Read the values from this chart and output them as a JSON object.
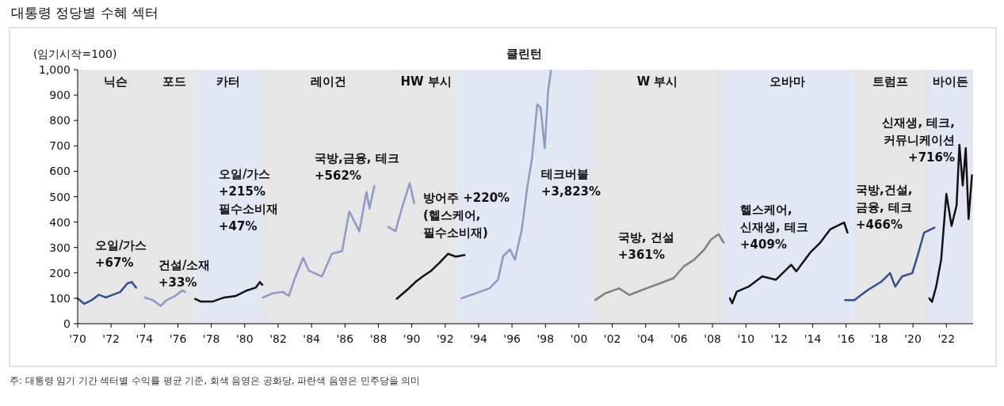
{
  "chart_data": {
    "type": "line",
    "title": "대통령 정당별 수혜 섹터",
    "ylabel": "(임기시작=100)",
    "xlim": [
      1970,
      2023.6
    ],
    "ylim": [
      0,
      1000
    ],
    "xticks": [
      {
        "value": 1970,
        "label": "'70"
      },
      {
        "value": 1972,
        "label": "'72"
      },
      {
        "value": 1974,
        "label": "'74"
      },
      {
        "value": 1976,
        "label": "'76"
      },
      {
        "value": 1978,
        "label": "'78"
      },
      {
        "value": 1980,
        "label": "'80"
      },
      {
        "value": 1982,
        "label": "'82"
      },
      {
        "value": 1984,
        "label": "'84"
      },
      {
        "value": 1986,
        "label": "'86"
      },
      {
        "value": 1988,
        "label": "'88"
      },
      {
        "value": 1990,
        "label": "'90"
      },
      {
        "value": 1992,
        "label": "'92"
      },
      {
        "value": 1994,
        "label": "'94"
      },
      {
        "value": 1996,
        "label": "'96"
      },
      {
        "value": 1998,
        "label": "'98"
      },
      {
        "value": 2000,
        "label": "'00"
      },
      {
        "value": 2002,
        "label": "'02"
      },
      {
        "value": 2004,
        "label": "'04"
      },
      {
        "value": 2006,
        "label": "'06"
      },
      {
        "value": 2008,
        "label": "'08"
      },
      {
        "value": 2010,
        "label": "'10"
      },
      {
        "value": 2012,
        "label": "'12"
      },
      {
        "value": 2014,
        "label": "'14"
      },
      {
        "value": 2016,
        "label": "'16"
      },
      {
        "value": 2018,
        "label": "'18"
      },
      {
        "value": 2020,
        "label": "'20"
      },
      {
        "value": 2022,
        "label": "'22"
      }
    ],
    "yticks": [
      0,
      100,
      200,
      300,
      400,
      500,
      600,
      700,
      800,
      900,
      {
        "value": 1000,
        "label": "1,000"
      }
    ],
    "grid": false,
    "marker": "none",
    "line_style": "solid",
    "bands": [
      {
        "axis": "x",
        "from": 1970,
        "to": 1974.6,
        "label": "닉슨",
        "color": "#e6e6e6"
      },
      {
        "axis": "x",
        "from": 1974.6,
        "to": 1977,
        "label": "포드",
        "color": "#e6e6e6"
      },
      {
        "axis": "x",
        "from": 1977,
        "to": 1981,
        "label": "카터",
        "color": "#e1e8f4"
      },
      {
        "axis": "x",
        "from": 1981,
        "to": 1989,
        "label": "레이건",
        "color": "#e6e6e6"
      },
      {
        "axis": "x",
        "from": 1989,
        "to": 1992.7,
        "label": "HW 부시",
        "color": "#e6e6e6"
      },
      {
        "axis": "x",
        "from": 1992.7,
        "to": 2000.8,
        "label": "클린턴",
        "color": "#e1e8f4"
      },
      {
        "axis": "x",
        "from": 2000.8,
        "to": 2008.6,
        "label": "W 부시",
        "color": "#e6e6e6"
      },
      {
        "axis": "x",
        "from": 2008.6,
        "to": 2016.4,
        "label": "오바마",
        "color": "#e1e8f4"
      },
      {
        "axis": "x",
        "from": 2016.4,
        "to": 2020.9,
        "label": "트럼프",
        "color": "#e6e6e6"
      },
      {
        "axis": "x",
        "from": 2020.9,
        "to": 2023.6,
        "label": "바이든",
        "color": "#e1e8f4"
      }
    ],
    "series": [
      {
        "color": "#2f4f8f",
        "x": [
          1970,
          1970.4,
          1970.83,
          1971.26,
          1971.69,
          1972.12,
          1972.55,
          1972.98,
          1973.24,
          1973.5
        ],
        "values": [
          100,
          78,
          92,
          114,
          103,
          114,
          125,
          159,
          164,
          142
        ]
      },
      {
        "color": "#8c9bc4",
        "x": [
          1974.02,
          1974.53,
          1974.97,
          1975.31,
          1975.83,
          1976.26,
          1976.43
        ],
        "values": [
          103,
          92,
          70,
          92,
          109,
          131,
          125
        ]
      },
      {
        "color": "#111111",
        "x": [
          1977.03,
          1977.38,
          1978.07,
          1978.76,
          1979.45,
          1980.14,
          1980.66,
          1980.91,
          1981.05
        ],
        "values": [
          98,
          87,
          87,
          103,
          109,
          131,
          142,
          164,
          153
        ]
      },
      {
        "color": "#8c9bc4",
        "x": [
          1981.09,
          1981.69,
          1982.29,
          1982.64,
          1982.98,
          1983.5,
          1983.84,
          1984.62,
          1985.22,
          1985.83,
          1986.26,
          1986.86,
          1987.29,
          1987.47,
          1987.76
        ],
        "values": [
          103,
          120,
          125,
          109,
          175,
          259,
          209,
          186,
          275,
          286,
          442,
          364,
          519,
          453,
          542
        ]
      },
      {
        "color": "#8c9bc4",
        "x": [
          1988.59,
          1989.02,
          1989.45,
          1989.88,
          1990.14
        ],
        "values": [
          381,
          364,
          464,
          553,
          475
        ]
      },
      {
        "color": "#111111",
        "x": [
          1989.1,
          1989.79,
          1990.22,
          1990.66,
          1991.17,
          1991.69,
          1992.17,
          1992.64,
          1993.16
        ],
        "values": [
          98,
          137,
          164,
          186,
          209,
          242,
          275,
          264,
          270
        ]
      },
      {
        "color": "#8c9bc4",
        "x": [
          1992.98,
          1993.84,
          1994.65,
          1995.16,
          1995.47,
          1995.88,
          1996.18,
          1996.59,
          1996.9,
          1997.2,
          1997.51,
          1997.71,
          1997.96,
          1998.16,
          1998.33
        ],
        "values": [
          100,
          120,
          139,
          173,
          266,
          292,
          252,
          372,
          531,
          651,
          863,
          850,
          691,
          916,
          996
        ]
      },
      {
        "color": "#808080",
        "x": [
          2000.98,
          2001.59,
          2002.41,
          2003.02,
          2004.04,
          2004.86,
          2005.67,
          2006.29,
          2006.9,
          2007.51,
          2007.92,
          2008.37,
          2008.67
        ],
        "values": [
          93,
          120,
          139,
          113,
          139,
          159,
          179,
          226,
          252,
          292,
          332,
          352,
          319
        ]
      },
      {
        "color": "#111111",
        "x": [
          2009.04,
          2009.18,
          2009.45,
          2010.16,
          2010.98,
          2011.8,
          2012.71,
          2013.02,
          2013.84,
          2014.45,
          2015.06,
          2015.88,
          2016.08
        ],
        "values": [
          100,
          80,
          126,
          146,
          186,
          173,
          232,
          206,
          279,
          319,
          372,
          398,
          359
        ]
      },
      {
        "color": "#2f4f8f",
        "x": [
          2015.94,
          2016.49,
          2017.31,
          2018.12,
          2018.63,
          2018.94,
          2019.35,
          2019.96,
          2020.27,
          2020.67,
          2021.29
        ],
        "values": [
          93,
          93,
          133,
          166,
          199,
          146,
          186,
          199,
          266,
          359,
          378
        ]
      },
      {
        "color": "#111111",
        "x": [
          2020.98,
          2021.14,
          2021.39,
          2021.69,
          2022.0,
          2022.31,
          2022.61,
          2022.78,
          2022.98,
          2023.16,
          2023.33,
          2023.53
        ],
        "values": [
          100,
          86,
          146,
          252,
          511,
          385,
          465,
          704,
          544,
          691,
          412,
          584
        ]
      }
    ],
    "annotations": [
      "오일/가스\n+67%",
      "건설/소재\n+33%",
      "오일/가스\n+215%\n필수소비재\n+47%",
      "국방,금융, 테크\n+562%",
      "방어주 +220%\n(헬스케어,\n필수소비재)",
      "테크버블\n+3,823%",
      "국방, 건설\n+361%",
      "헬스케어,\n신재생, 테크\n+409%",
      "국방,건설,\n금융, 테크\n+466%",
      "신재생, 테크,\n커뮤니케이션\n+716%",
      "주: 대통령 임기 기간 섹터별 수익률 평균 기준, 회색 음영은 공화당, 파란색 음영은 민주당을 의미"
    ]
  }
}
